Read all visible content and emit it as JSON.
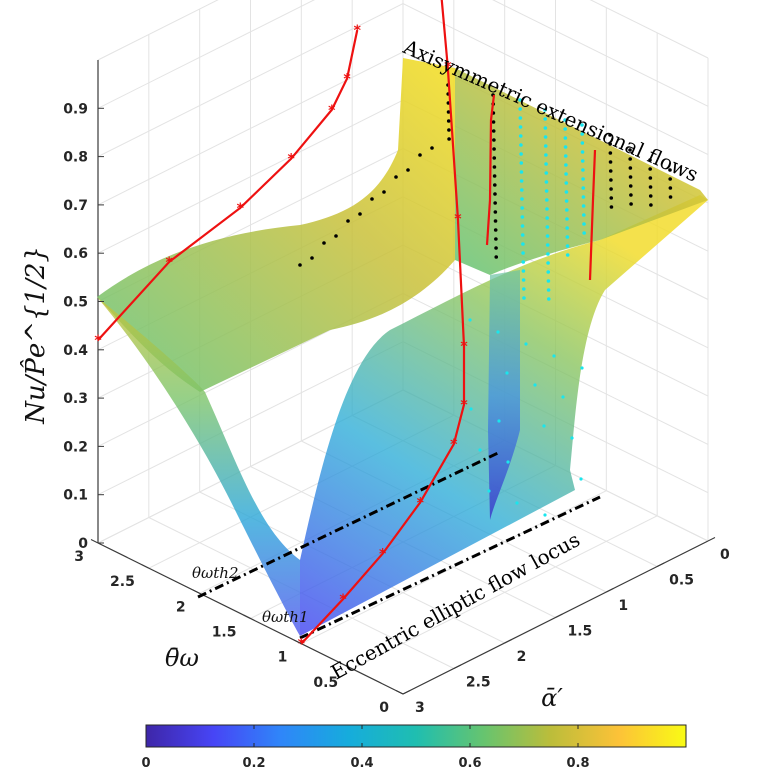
{
  "chart_data": {
    "type": "surface3d",
    "zlabel": "Nu/P̂e^{1/2}",
    "xlabel": "ᾱ′",
    "ylabel": "θ̄ω",
    "x_ticks": [
      "0",
      "0.5",
      "1",
      "1.5",
      "2",
      "2.5",
      "3"
    ],
    "y_ticks": [
      "0",
      "0.5",
      "1",
      "1.5",
      "2",
      "2.5",
      "3"
    ],
    "z_ticks": [
      "0",
      "0.1",
      "0.2",
      "0.3",
      "0.4",
      "0.5",
      "0.6",
      "0.7",
      "0.8",
      "0.9"
    ],
    "xlim": [
      0,
      3
    ],
    "ylim": [
      0,
      3
    ],
    "zlim": [
      0,
      1
    ],
    "colorbar": {
      "min": 0,
      "max": 1,
      "ticks": [
        "0",
        "0.2",
        "0.4",
        "0.6",
        "0.8"
      ],
      "colors": [
        "#3e26a8",
        "#4745f6",
        "#2f86f9",
        "#16acdc",
        "#1fbeb0",
        "#66c46f",
        "#bcbd3a",
        "#fcc238",
        "#f9fb15"
      ]
    },
    "annotations": {
      "axisymmetric": "Axisymmetric extensional flows",
      "eccentric": "Eccentric elliptic flow locus",
      "theta_th1": "θωth1",
      "theta_th2": "θωth2"
    },
    "red_curve_1": [
      [
        3,
        1.0,
        0
      ],
      [
        2.5,
        1.09,
        0.03
      ],
      [
        2,
        1.2,
        0.06
      ],
      [
        1.5,
        1.33,
        0.1
      ],
      [
        1,
        1.5,
        0.15
      ],
      [
        0.8,
        1.6,
        0.2
      ],
      [
        0.7,
        1.7,
        0.3
      ],
      [
        0.66,
        1.8,
        0.55
      ],
      [
        0.64,
        1.92,
        0.85
      ],
      [
        0.62,
        2.0,
        0.98
      ]
    ],
    "red_curve_2": [
      [
        3,
        3,
        0.42
      ],
      [
        2.5,
        2.8,
        0.55
      ],
      [
        2,
        2.6,
        0.63
      ],
      [
        1.6,
        2.5,
        0.7
      ],
      [
        1.3,
        2.4,
        0.78
      ],
      [
        1.25,
        2.3,
        0.85
      ],
      [
        1.2,
        2.25,
        0.95
      ]
    ]
  }
}
